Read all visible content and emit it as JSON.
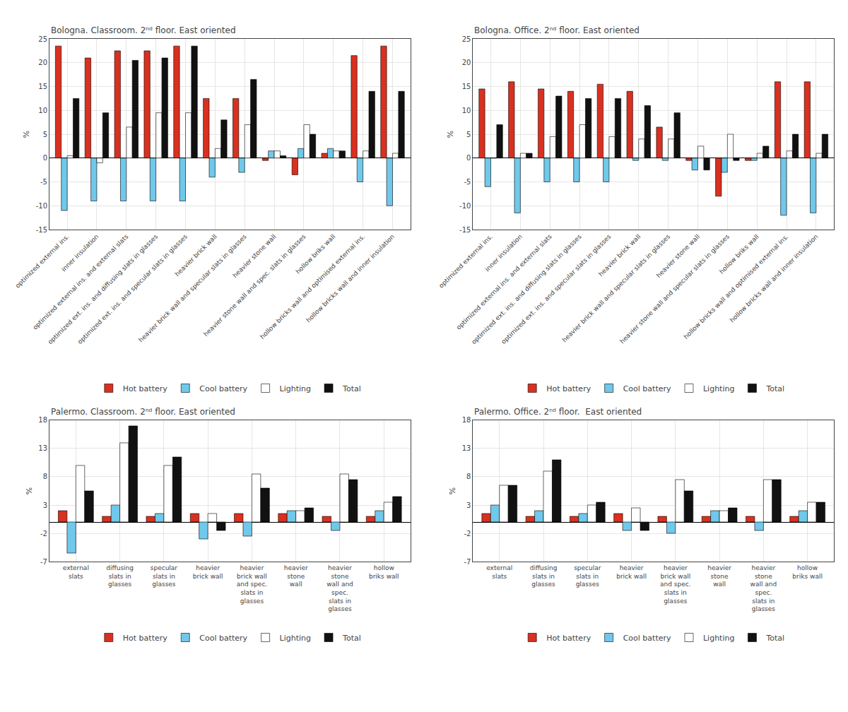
{
  "chart_data": [
    {
      "type": "bar",
      "title": "Bologna. Classroom. 2ⁿᵈ floor. East oriented",
      "y_label": "%",
      "categories": [
        "optimized external ins.",
        "inner insulation",
        "optimized external ins. and external slats",
        "optimized ext. ins. and diffusing slats in glasses",
        "optimized ext. ins. and specular slats in glasses",
        "heavier brick wall",
        "heavier brick wall and specular slats in glasses",
        "heavier stone wall",
        "heavier stone wall and spec. slats in glasses",
        "hollow briks wall",
        "hollow bricks wall and optimised external ins.",
        "hollow bricks wall and inner insulation"
      ],
      "series": [
        {
          "name": "Hot battery",
          "color": "#d93020",
          "values": [
            23.5,
            21.0,
            22.5,
            22.5,
            23.5,
            12.5,
            12.5,
            -0.5,
            -3.5,
            1.0,
            21.5,
            23.5
          ]
        },
        {
          "name": "Cool battery",
          "color": "#70c8ea",
          "values": [
            -11.0,
            -9.0,
            -9.0,
            -9.0,
            -9.0,
            -4.0,
            -3.0,
            1.5,
            2.0,
            2.0,
            -5.0,
            -10.0
          ]
        },
        {
          "name": "Lighting",
          "color": "#ffffff",
          "values": [
            0.5,
            -1.0,
            6.5,
            9.5,
            9.5,
            2.0,
            7.0,
            1.5,
            7.0,
            1.5,
            1.5,
            1.0
          ]
        },
        {
          "name": "Total",
          "color": "#111111",
          "values": [
            12.5,
            9.5,
            20.5,
            21.0,
            23.5,
            8.0,
            16.5,
            0.5,
            5.0,
            1.5,
            14.0,
            14.0
          ]
        }
      ],
      "ylim": [
        -15,
        25
      ],
      "yticks": [
        -15,
        -10,
        -5,
        0,
        5,
        10,
        15,
        20,
        25
      ],
      "grid": true,
      "legend": "bottom"
    },
    {
      "type": "bar",
      "title": "Bologna. Office. 2ⁿᵈ floor. East oriented",
      "y_label": "%",
      "categories": [
        "optimized external ins.",
        "inner insulation",
        "optimized external ins. and external slats",
        "optimized ext. ins. and diffusing slats in glasses",
        "optimized ext. ins. and specular slats in glasses",
        "heavier brick wall",
        "heavier brick wall and specular slats in glasses",
        "heavier stone wall",
        "heavier stone wall and specular slats in glasses",
        "hollow briks wall",
        "hollow bricks wall and optimised external ins.",
        "hollow bricks wall and inner insulation"
      ],
      "series": [
        {
          "name": "Hot battery",
          "color": "#d93020",
          "values": [
            14.5,
            16.0,
            14.5,
            14.0,
            15.5,
            14.0,
            6.5,
            -0.5,
            -8.0,
            -0.5,
            16.0,
            16.0
          ]
        },
        {
          "name": "Cool battery",
          "color": "#70c8ea",
          "values": [
            -6.0,
            -11.5,
            -5.0,
            -5.0,
            -5.0,
            -0.5,
            -0.5,
            -2.5,
            -3.0,
            -0.5,
            -12.0,
            -11.5
          ]
        },
        {
          "name": "Lighting",
          "color": "#ffffff",
          "values": [
            0.0,
            1.0,
            4.5,
            7.0,
            4.5,
            4.0,
            4.0,
            2.5,
            5.0,
            1.0,
            1.5,
            1.0
          ]
        },
        {
          "name": "Total",
          "color": "#111111",
          "values": [
            7.0,
            1.0,
            13.0,
            12.5,
            12.5,
            11.0,
            9.5,
            -2.5,
            -0.5,
            2.5,
            5.0,
            5.0
          ]
        }
      ],
      "ylim": [
        -15,
        25
      ],
      "yticks": [
        -15,
        -10,
        -5,
        0,
        5,
        10,
        15,
        20,
        25
      ],
      "grid": true,
      "legend": "bottom"
    },
    {
      "type": "bar",
      "title": "Palermo. Classroom. 2ⁿᵈ floor. East oriented",
      "y_label": "%",
      "categories": [
        "external\nslats",
        "diffusing\nslats in\nglasses",
        "specular\nslats in\nglasses",
        "heavier\nbrick wall",
        "heavier\nbrick wall\nand spec.\nslats in\nglasses",
        "heavier\nstone\nwall",
        "heavier\nstone\nwall and\nspec.\nslats in\nglasses",
        "hollow\nbriks wall"
      ],
      "series": [
        {
          "name": "Hot battery",
          "color": "#d93020",
          "values": [
            2.0,
            1.0,
            1.0,
            1.5,
            1.5,
            1.5,
            1.0,
            1.0
          ]
        },
        {
          "name": "Cool battery",
          "color": "#70c8ea",
          "values": [
            -5.5,
            3.0,
            1.5,
            -3.0,
            -2.5,
            2.0,
            -1.5,
            2.0
          ]
        },
        {
          "name": "Lighting",
          "color": "#ffffff",
          "values": [
            10.0,
            14.0,
            10.0,
            1.5,
            8.5,
            2.0,
            8.5,
            3.5
          ]
        },
        {
          "name": "Total",
          "color": "#111111",
          "values": [
            5.5,
            17.0,
            11.5,
            -1.5,
            6.0,
            2.5,
            7.5,
            4.5
          ]
        }
      ],
      "ylim": [
        -7,
        18
      ],
      "yticks": [
        -7,
        -2,
        3,
        8,
        13,
        18
      ],
      "grid": true,
      "legend": "bottom"
    },
    {
      "type": "bar",
      "title": "Palermo. Office. 2ⁿᵈ floor.  East oriented",
      "y_label": "%",
      "categories": [
        "external\nslats",
        "diffusing\nslats in\nglasses",
        "specular\nslats in\nglasses",
        "heavier\nbrick wall",
        "heavier\nbrick wall\nand spec.\nslats in\nglasses",
        "heavier\nstone\nwall",
        "heavier\nstone\nwall and\nspec.\nslats in\nglasses",
        "hollow\nbriks wall"
      ],
      "series": [
        {
          "name": "Hot battery",
          "color": "#d93020",
          "values": [
            1.5,
            1.0,
            1.0,
            1.5,
            1.0,
            1.0,
            1.0,
            1.0
          ]
        },
        {
          "name": "Cool battery",
          "color": "#70c8ea",
          "values": [
            3.0,
            2.0,
            1.5,
            -1.5,
            -2.0,
            2.0,
            -1.5,
            2.0
          ]
        },
        {
          "name": "Lighting",
          "color": "#ffffff",
          "values": [
            6.5,
            9.0,
            3.0,
            2.5,
            7.5,
            2.0,
            7.5,
            3.5
          ]
        },
        {
          "name": "Total",
          "color": "#111111",
          "values": [
            6.5,
            11.0,
            3.5,
            -1.5,
            5.5,
            2.5,
            7.5,
            3.5
          ]
        }
      ],
      "ylim": [
        -7,
        18
      ],
      "yticks": [
        -7,
        -2,
        3,
        8,
        13,
        18
      ],
      "grid": true,
      "legend": "bottom"
    }
  ]
}
